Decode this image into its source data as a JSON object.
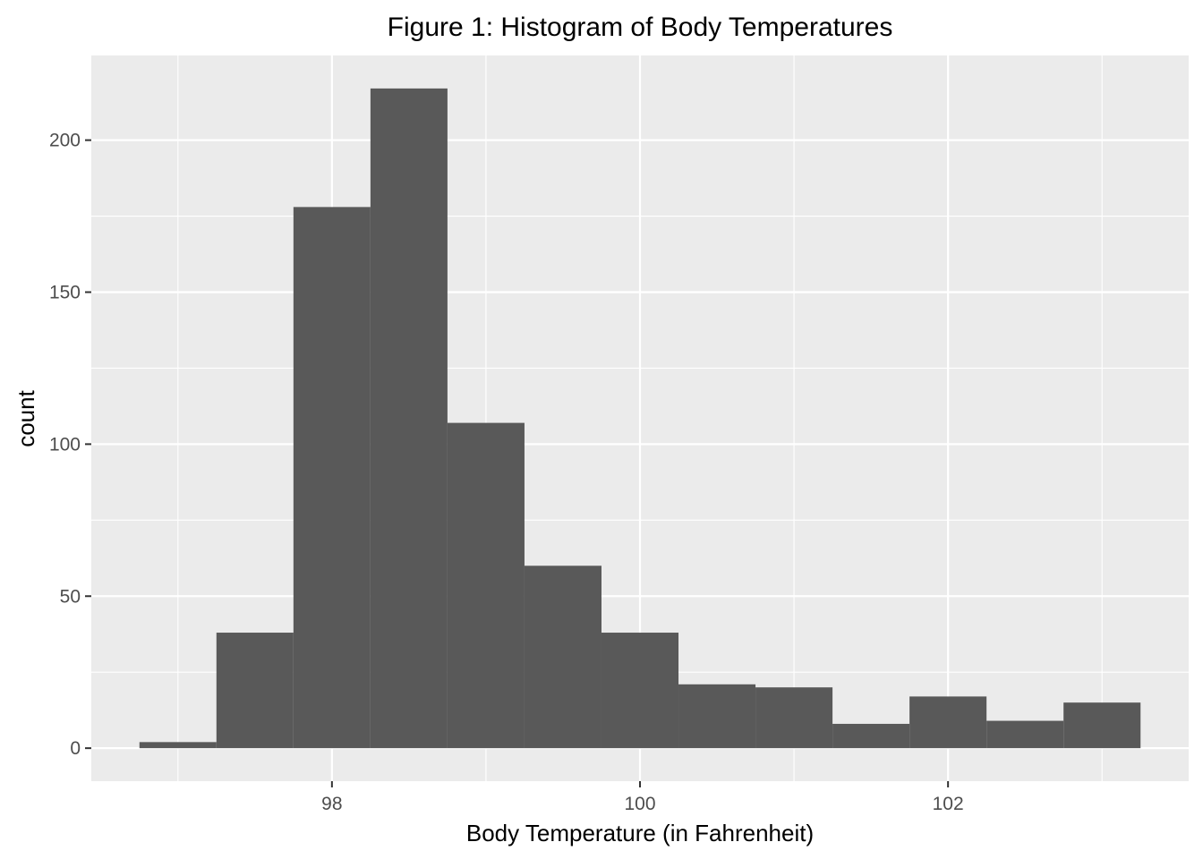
{
  "chart_data": {
    "type": "histogram",
    "title": "Figure 1: Histogram of Body Temperatures",
    "xlabel": "Body Temperature (in Fahrenheit)",
    "ylabel": "count",
    "bin_width": 0.5,
    "bins": [
      {
        "x0": 96.75,
        "x1": 97.25,
        "count": 2
      },
      {
        "x0": 97.25,
        "x1": 97.75,
        "count": 38
      },
      {
        "x0": 97.75,
        "x1": 98.25,
        "count": 178
      },
      {
        "x0": 98.25,
        "x1": 98.75,
        "count": 217
      },
      {
        "x0": 98.75,
        "x1": 99.25,
        "count": 107
      },
      {
        "x0": 99.25,
        "x1": 99.75,
        "count": 60
      },
      {
        "x0": 99.75,
        "x1": 100.25,
        "count": 38
      },
      {
        "x0": 100.25,
        "x1": 100.75,
        "count": 21
      },
      {
        "x0": 100.75,
        "x1": 101.25,
        "count": 20
      },
      {
        "x0": 101.25,
        "x1": 101.75,
        "count": 8
      },
      {
        "x0": 101.75,
        "x1": 102.25,
        "count": 17
      },
      {
        "x0": 102.25,
        "x1": 102.75,
        "count": 9
      },
      {
        "x0": 102.75,
        "x1": 103.25,
        "count": 15
      }
    ],
    "xlim": [
      96.4375,
      103.5625
    ],
    "ylim": [
      -10.85,
      227.85
    ],
    "x_ticks": [
      98,
      100,
      102
    ],
    "x_tick_labels": [
      "98",
      "100",
      "102"
    ],
    "x_minor_ticks": [
      97,
      99,
      101,
      103
    ],
    "y_ticks": [
      0,
      50,
      100,
      150,
      200
    ],
    "y_tick_labels": [
      "0",
      "50",
      "100",
      "150",
      "200"
    ],
    "y_minor_ticks": [
      25,
      75,
      125,
      175
    ],
    "grid": true,
    "legend": "none",
    "colors": {
      "panel_background": "#ebebeb",
      "grid_line": "#ffffff",
      "bar_fill": "#595959",
      "tick_label": "#4d4d4d",
      "tick_mark": "#333333"
    }
  }
}
